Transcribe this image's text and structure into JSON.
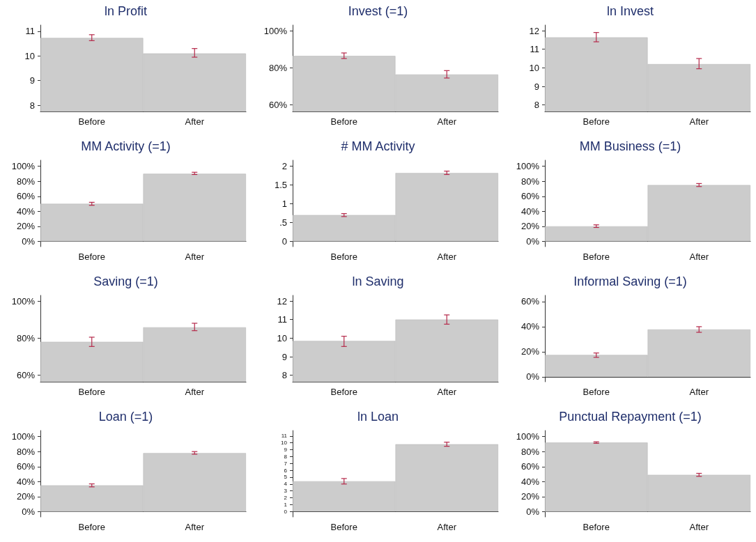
{
  "chart_data": [
    {
      "type": "bar",
      "title": "ln Profit",
      "categories": [
        "Before",
        "After"
      ],
      "values": [
        10.73,
        10.1
      ],
      "errors": [
        [
          10.62,
          10.86
        ],
        [
          9.95,
          10.3
        ]
      ],
      "color": "#cccccc",
      "ylim": [
        7.75,
        11.25
      ],
      "yticks": [
        8,
        9,
        10,
        11
      ]
    },
    {
      "type": "bar",
      "title": "Invest (=1)",
      "categories": [
        "Before",
        "After"
      ],
      "values": [
        86.4,
        76.4
      ],
      "errors": [
        [
          85,
          88
        ],
        [
          74.5,
          78.5
        ]
      ],
      "color": "#cccccc",
      "ylim": [
        56.5,
        103
      ],
      "yticks": [
        {
          "value": 60,
          "label": "60%"
        },
        {
          "value": 80,
          "label": "80%"
        },
        {
          "value": 100,
          "label": "100%"
        }
      ]
    },
    {
      "type": "bar",
      "title": "ln Invest",
      "categories": [
        "Before",
        "After"
      ],
      "values": [
        11.64,
        10.2
      ],
      "errors": [
        [
          11.4,
          11.9
        ],
        [
          9.95,
          10.5
        ]
      ],
      "color": "#cccccc",
      "ylim": [
        7.65,
        12.3
      ],
      "yticks": [
        8,
        9,
        10,
        11,
        12
      ]
    },
    {
      "type": "bar",
      "title": "MM Activity (=1)",
      "categories": [
        "Before",
        "After"
      ],
      "values": [
        50,
        90
      ],
      "errors": [
        [
          48,
          52
        ],
        [
          89,
          92
        ]
      ],
      "color": "#cccccc",
      "ylim": [
        -7,
        108
      ],
      "yticks": [
        {
          "value": 0,
          "label": "0%"
        },
        {
          "value": 20,
          "label": "20%"
        },
        {
          "value": 40,
          "label": "40%"
        },
        {
          "value": 60,
          "label": "60%"
        },
        {
          "value": 80,
          "label": "80%"
        },
        {
          "value": 100,
          "label": "100%"
        }
      ]
    },
    {
      "type": "bar",
      "title": "# MM Activity",
      "categories": [
        "Before",
        "After"
      ],
      "values": [
        0.7,
        1.82
      ],
      "errors": [
        [
          0.66,
          0.74
        ],
        [
          1.78,
          1.87
        ]
      ],
      "color": "#cccccc",
      "ylim": [
        -0.14,
        2.16
      ],
      "yticks": [
        0,
        {
          "value": 0.5,
          "label": ".5"
        },
        1,
        1.5,
        2
      ]
    },
    {
      "type": "bar",
      "title": "MM Business (=1)",
      "categories": [
        "Before",
        "After"
      ],
      "values": [
        20,
        75
      ],
      "errors": [
        [
          18.5,
          22
        ],
        [
          73,
          77
        ]
      ],
      "color": "#cccccc",
      "ylim": [
        -7,
        108
      ],
      "yticks": [
        {
          "value": 0,
          "label": "0%"
        },
        {
          "value": 20,
          "label": "20%"
        },
        {
          "value": 40,
          "label": "40%"
        },
        {
          "value": 60,
          "label": "60%"
        },
        {
          "value": 80,
          "label": "80%"
        },
        {
          "value": 100,
          "label": "100%"
        }
      ]
    },
    {
      "type": "bar",
      "title": "Saving (=1)",
      "categories": [
        "Before",
        "After"
      ],
      "values": [
        78,
        85.8
      ],
      "errors": [
        [
          75.5,
          80.5
        ],
        [
          84,
          88
        ]
      ],
      "color": "#cccccc",
      "ylim": [
        56.5,
        103
      ],
      "yticks": [
        {
          "value": 60,
          "label": "60%"
        },
        {
          "value": 80,
          "label": "80%"
        },
        {
          "value": 100,
          "label": "100%"
        }
      ]
    },
    {
      "type": "bar",
      "title": "ln Saving",
      "categories": [
        "Before",
        "After"
      ],
      "values": [
        9.85,
        11
      ],
      "errors": [
        [
          9.55,
          10.1
        ],
        [
          10.75,
          11.25
        ]
      ],
      "color": "#cccccc",
      "ylim": [
        7.65,
        12.3
      ],
      "yticks": [
        8,
        9,
        10,
        11,
        12
      ]
    },
    {
      "type": "bar",
      "title": "Informal Saving (=1)",
      "categories": [
        "Before",
        "After"
      ],
      "values": [
        17.4,
        37.8
      ],
      "errors": [
        [
          15.5,
          19
        ],
        [
          35.5,
          40
        ]
      ],
      "color": "#cccccc",
      "ylim": [
        -4,
        65
      ],
      "yticks": [
        {
          "value": 0,
          "label": "0%"
        },
        {
          "value": 20,
          "label": "20%"
        },
        {
          "value": 40,
          "label": "40%"
        },
        {
          "value": 60,
          "label": "60%"
        }
      ]
    },
    {
      "type": "bar",
      "title": "Loan (=1)",
      "categories": [
        "Before",
        "After"
      ],
      "values": [
        35,
        78
      ],
      "errors": [
        [
          33,
          37
        ],
        [
          76.5,
          80
        ]
      ],
      "color": "#cccccc",
      "ylim": [
        -7,
        108
      ],
      "yticks": [
        {
          "value": 0,
          "label": "0%"
        },
        {
          "value": 20,
          "label": "20%"
        },
        {
          "value": 40,
          "label": "40%"
        },
        {
          "value": 60,
          "label": "60%"
        },
        {
          "value": 80,
          "label": "80%"
        },
        {
          "value": 100,
          "label": "100%"
        }
      ]
    },
    {
      "type": "bar",
      "title": "ln Loan",
      "categories": [
        "Before",
        "After"
      ],
      "values": [
        4.4,
        9.8
      ],
      "errors": [
        [
          4,
          4.8
        ],
        [
          9.5,
          10.1
        ]
      ],
      "color": "#cccccc",
      "ylim": [
        -0.8,
        11.8
      ],
      "yticks": [
        0,
        1,
        2,
        3,
        4,
        5,
        6,
        7,
        8,
        9,
        10,
        11
      ]
    },
    {
      "type": "bar",
      "title": "Punctual Repayment (=1)",
      "categories": [
        "Before",
        "After"
      ],
      "values": [
        92,
        49
      ],
      "errors": [
        [
          91,
          93
        ],
        [
          47,
          51
        ]
      ],
      "color": "#cccccc",
      "ylim": [
        -7,
        108
      ],
      "yticks": [
        {
          "value": 0,
          "label": "0%"
        },
        {
          "value": 20,
          "label": "20%"
        },
        {
          "value": 40,
          "label": "40%"
        },
        {
          "value": 60,
          "label": "60%"
        },
        {
          "value": 80,
          "label": "80%"
        },
        {
          "value": 100,
          "label": "100%"
        }
      ]
    }
  ]
}
